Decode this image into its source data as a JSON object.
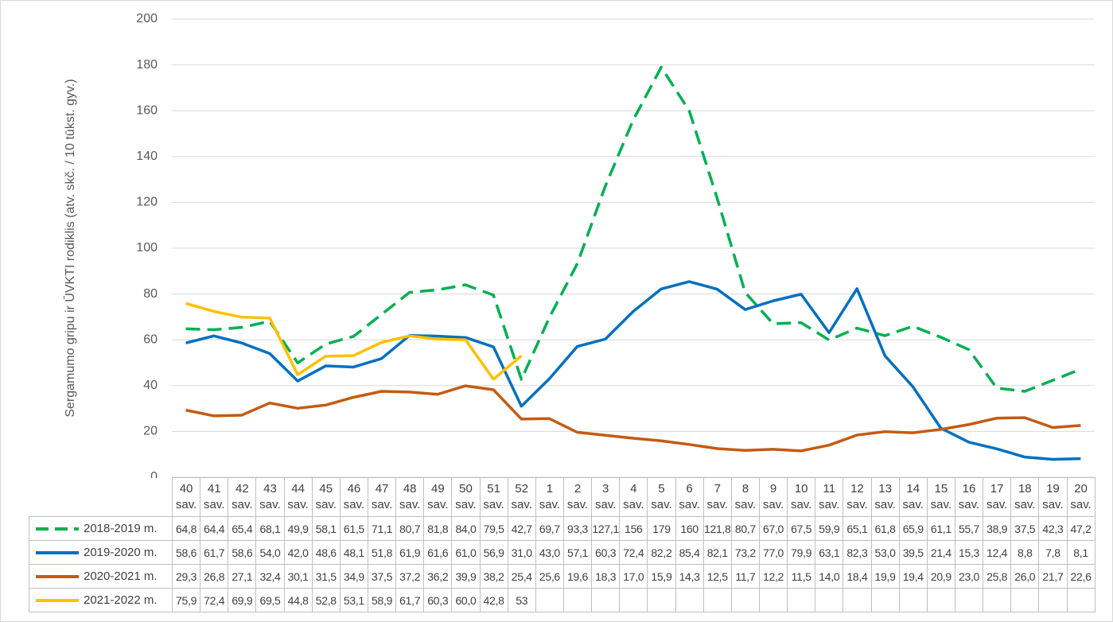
{
  "chart_data": {
    "type": "line",
    "ylabel": "Sergamumo gripu ir ŪVKTI rodiklis (atv. skč. / 10 tūkst. gyv.)",
    "categories": [
      "40 sav.",
      "41 sav.",
      "42 sav.",
      "43 sav.",
      "44 sav.",
      "45 sav.",
      "46 sav.",
      "47 sav.",
      "48 sav.",
      "49 sav.",
      "50 sav.",
      "51 sav.",
      "52 sav.",
      "1 sav.",
      "2 sav.",
      "3 sav.",
      "4 sav.",
      "5 sav.",
      "6 sav.",
      "7 sav.",
      "8 sav.",
      "9 sav.",
      "10 sav.",
      "11 sav.",
      "12 sav.",
      "13 sav.",
      "14 sav.",
      "15 sav.",
      "16 sav.",
      "17 sav.",
      "18 sav.",
      "19 sav.",
      "20 sav."
    ],
    "ylim": [
      0,
      200
    ],
    "yticks": [
      0,
      20,
      40,
      60,
      80,
      100,
      120,
      140,
      160,
      180,
      200
    ],
    "grid": true,
    "series": [
      {
        "name": "2018-2019 m.",
        "color": "#00b050",
        "style": "dashed",
        "values": [
          64.8,
          64.4,
          65.4,
          68.1,
          49.9,
          58.1,
          61.5,
          71.1,
          80.7,
          81.8,
          84.0,
          79.5,
          42.7,
          69.7,
          93.3,
          127.1,
          156,
          179,
          160,
          121.8,
          80.7,
          67.0,
          67.5,
          59.9,
          65.1,
          61.8,
          65.9,
          61.1,
          55.7,
          38.9,
          37.5,
          42.3,
          47.2
        ],
        "value_labels": [
          "64,8",
          "64,4",
          "65,4",
          "68,1",
          "49,9",
          "58,1",
          "61,5",
          "71,1",
          "80,7",
          "81,8",
          "84,0",
          "79,5",
          "42,7",
          "69,7",
          "93,3",
          "127,1",
          "156",
          "179",
          "160",
          "121,8",
          "80,7",
          "67,0",
          "67,5",
          "59,9",
          "65,1",
          "61,8",
          "65,9",
          "61,1",
          "55,7",
          "38,9",
          "37,5",
          "42,3",
          "47,2"
        ]
      },
      {
        "name": "2019-2020 m.",
        "color": "#0070c0",
        "style": "solid",
        "values": [
          58.6,
          61.7,
          58.6,
          54.0,
          42.0,
          48.6,
          48.1,
          51.8,
          61.9,
          61.6,
          61.0,
          56.9,
          31.0,
          43.0,
          57.1,
          60.3,
          72.4,
          82.2,
          85.4,
          82.1,
          73.2,
          77.0,
          79.9,
          63.1,
          82.3,
          53.0,
          39.5,
          21.4,
          15.3,
          12.4,
          8.8,
          7.8,
          8.1
        ],
        "value_labels": [
          "58,6",
          "61,7",
          "58,6",
          "54,0",
          "42,0",
          "48,6",
          "48,1",
          "51,8",
          "61,9",
          "61,6",
          "61,0",
          "56,9",
          "31,0",
          "43,0",
          "57,1",
          "60,3",
          "72,4",
          "82,2",
          "85,4",
          "82,1",
          "73,2",
          "77,0",
          "79,9",
          "63,1",
          "82,3",
          "53,0",
          "39,5",
          "21,4",
          "15,3",
          "12,4",
          "8,8",
          "7,8",
          "8,1"
        ]
      },
      {
        "name": "2020-2021 m.",
        "color": "#c55a11",
        "style": "solid",
        "values": [
          29.3,
          26.8,
          27.1,
          32.4,
          30.1,
          31.5,
          34.9,
          37.5,
          37.2,
          36.2,
          39.9,
          38.2,
          25.4,
          25.6,
          19.6,
          18.3,
          17.0,
          15.9,
          14.3,
          12.5,
          11.7,
          12.2,
          11.5,
          14.0,
          18.4,
          19.9,
          19.4,
          20.9,
          23.0,
          25.8,
          26.0,
          21.7,
          22.6
        ],
        "value_labels": [
          "29,3",
          "26,8",
          "27,1",
          "32,4",
          "30,1",
          "31,5",
          "34,9",
          "37,5",
          "37,2",
          "36,2",
          "39,9",
          "38,2",
          "25,4",
          "25,6",
          "19,6",
          "18,3",
          "17,0",
          "15,9",
          "14,3",
          "12,5",
          "11,7",
          "12,2",
          "11,5",
          "14,0",
          "18,4",
          "19,9",
          "19,4",
          "20,9",
          "23,0",
          "25,8",
          "26,0",
          "21,7",
          "22,6"
        ]
      },
      {
        "name": "2021-2022 m.",
        "color": "#ffc000",
        "style": "solid",
        "values": [
          75.9,
          72.4,
          69.9,
          69.5,
          44.8,
          52.8,
          53.1,
          58.9,
          61.7,
          60.3,
          60.0,
          42.8,
          53,
          null,
          null,
          null,
          null,
          null,
          null,
          null,
          null,
          null,
          null,
          null,
          null,
          null,
          null,
          null,
          null,
          null,
          null,
          null,
          null
        ],
        "value_labels": [
          "75,9",
          "72,4",
          "69,9",
          "69,5",
          "44,8",
          "52,8",
          "53,1",
          "58,9",
          "61,7",
          "60,3",
          "60,0",
          "42,8",
          "53",
          null,
          null,
          null,
          null,
          null,
          null,
          null,
          null,
          null,
          null,
          null,
          null,
          null,
          null,
          null,
          null,
          null,
          null,
          null,
          null
        ]
      }
    ]
  }
}
